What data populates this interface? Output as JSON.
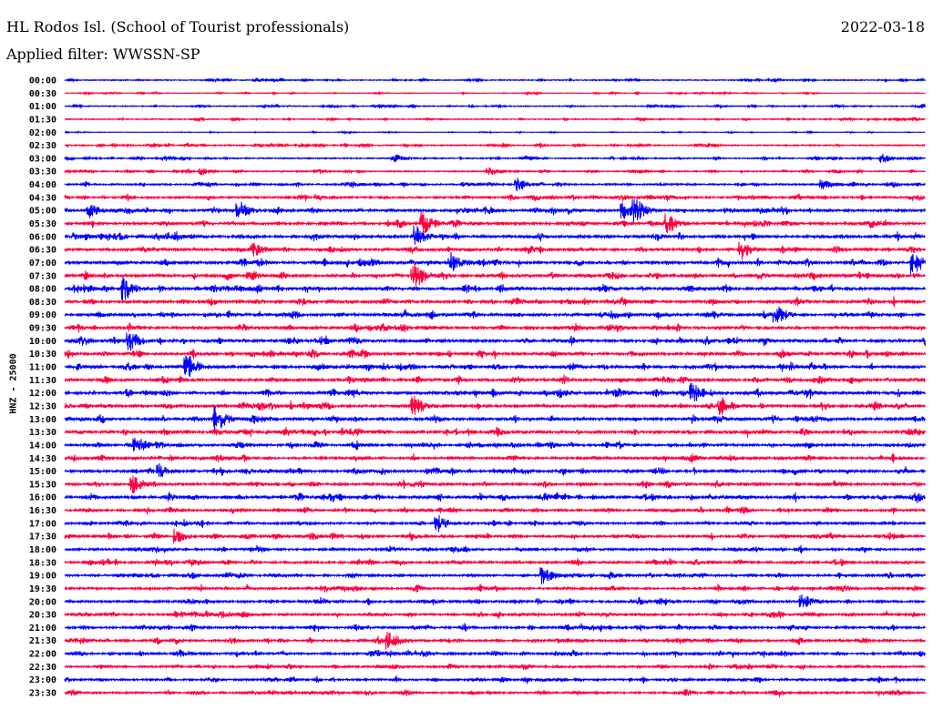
{
  "header": {
    "station": "HL Rodos Isl. (School of Tourist professionals)",
    "date": "2022-03-18",
    "filter": "Applied filter: WWSSN-SP"
  },
  "chart_data": {
    "type": "line",
    "title": "HL Rodos Isl. (School of Tourist professionals)",
    "ylabel": "HNZ - 25000",
    "xlabel": "",
    "minutes_per_line": 30,
    "colors": [
      "#0000ff",
      "#ff0040"
    ],
    "rows": [
      "00:00",
      "00:30",
      "01:00",
      "01:30",
      "02:00",
      "02:30",
      "03:00",
      "03:30",
      "04:00",
      "04:30",
      "05:00",
      "05:30",
      "06:00",
      "06:30",
      "07:00",
      "07:30",
      "08:00",
      "08:30",
      "09:00",
      "09:30",
      "10:00",
      "10:30",
      "11:00",
      "11:30",
      "12:00",
      "12:30",
      "13:00",
      "13:30",
      "14:00",
      "14:30",
      "15:00",
      "15:30",
      "16:00",
      "16:30",
      "17:00",
      "17:30",
      "18:00",
      "18:30",
      "19:00",
      "19:30",
      "20:00",
      "20:30",
      "21:00",
      "21:30",
      "22:00",
      "22:30",
      "23:00",
      "23:30"
    ],
    "noise_level": [
      0.25,
      0.15,
      0.25,
      0.25,
      0.12,
      0.3,
      0.3,
      0.3,
      0.4,
      0.45,
      0.55,
      0.55,
      0.6,
      0.6,
      0.6,
      0.6,
      0.6,
      0.6,
      0.6,
      0.6,
      0.6,
      0.6,
      0.6,
      0.6,
      0.65,
      0.6,
      0.6,
      0.6,
      0.55,
      0.55,
      0.55,
      0.55,
      0.6,
      0.5,
      0.5,
      0.5,
      0.5,
      0.5,
      0.5,
      0.5,
      0.5,
      0.5,
      0.5,
      0.5,
      0.5,
      0.45,
      0.45,
      0.45
    ],
    "events": [
      [
        6,
        11.6,
        1.2
      ],
      [
        6,
        28.5,
        1.3
      ],
      [
        7,
        4.8,
        1.1
      ],
      [
        7,
        14.8,
        1.4
      ],
      [
        8,
        15.8,
        1.5
      ],
      [
        8,
        26.4,
        1.3
      ],
      [
        10,
        0.9,
        1.2
      ],
      [
        10,
        6.1,
        1.6
      ],
      [
        10,
        19.5,
        1.5
      ],
      [
        10,
        19.9,
        2
      ],
      [
        11,
        12.5,
        1.8
      ],
      [
        11,
        21,
        1.6
      ],
      [
        12,
        12.3,
        1.6
      ],
      [
        13,
        6.6,
        1.2
      ],
      [
        13,
        23.6,
        1.5
      ],
      [
        14,
        13.5,
        1.5
      ],
      [
        14,
        29.6,
        1.8
      ],
      [
        15,
        12.2,
        2
      ],
      [
        16,
        2.1,
        1.8
      ],
      [
        18,
        24.8,
        1.6
      ],
      [
        20,
        2.3,
        1.6
      ],
      [
        22,
        4.3,
        2
      ],
      [
        24,
        21.9,
        1.4
      ],
      [
        25,
        12.2,
        1.6
      ],
      [
        25,
        22.9,
        1.5
      ],
      [
        26,
        5.3,
        1.8
      ],
      [
        28,
        2.5,
        1.5
      ],
      [
        30,
        3.3,
        1.2
      ],
      [
        31,
        2.4,
        1.5
      ],
      [
        34,
        13,
        1.5
      ],
      [
        35,
        3.9,
        1.3
      ],
      [
        38,
        16.7,
        1.6
      ],
      [
        40,
        25.7,
        1.4
      ],
      [
        43,
        11.3,
        1.7
      ]
    ]
  }
}
